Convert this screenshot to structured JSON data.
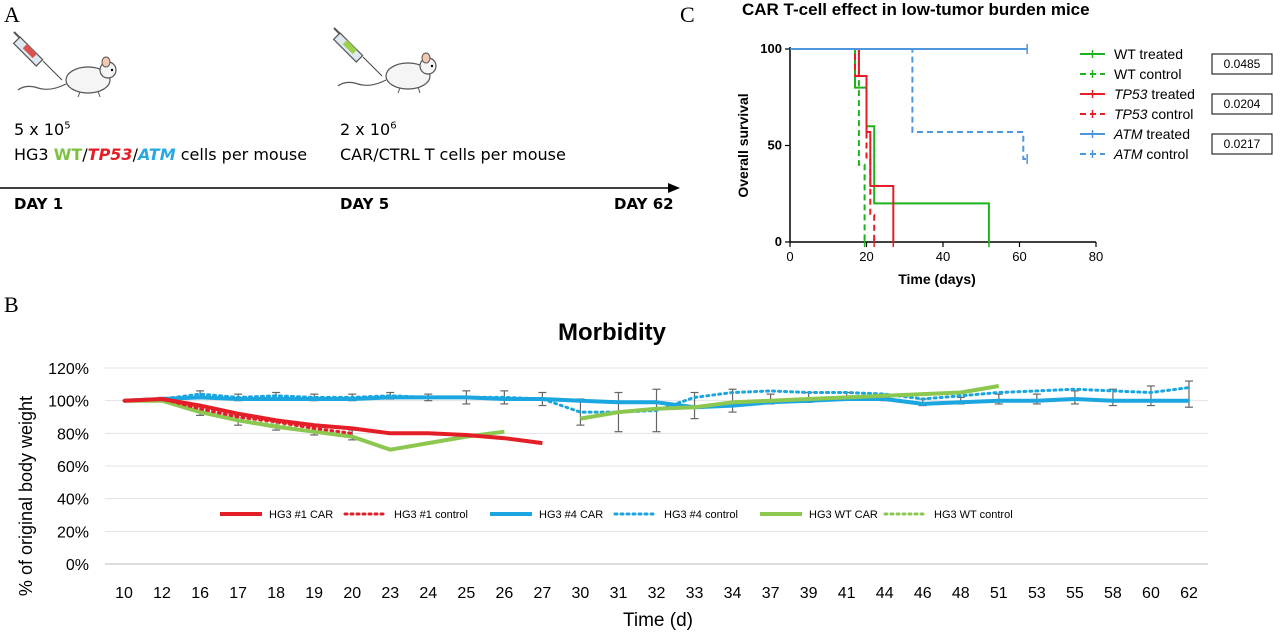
{
  "panel_a": {
    "letter": "A",
    "dose1": {
      "base": "5 x 10",
      "exp": "5",
      "prefix": "HG3 ",
      "wt": "WT",
      "sep1": "/",
      "tp53": "TP53",
      "sep2": "/",
      "atm": "ATM",
      "suffix": " cells per mouse"
    },
    "dose2": {
      "base": "2 x 10",
      "exp": "6",
      "line2": "CAR/CTRL T cells per mouse"
    },
    "days": [
      "DAY 1",
      "DAY 5",
      "DAY 62"
    ],
    "colors": {
      "wt": "#7dc242",
      "tp53": "#e41e26",
      "atm": "#29a8e0"
    }
  },
  "panel_b": {
    "letter": "B"
  },
  "panel_c": {
    "letter": "C"
  },
  "chart_data": [
    {
      "type": "line",
      "subtype": "survival-step",
      "title": "CAR T-cell effect in low-tumor burden mice",
      "xlabel": "Time (days)",
      "ylabel": "Overall survival",
      "xlim": [
        0,
        80
      ],
      "ylim": [
        0,
        100
      ],
      "xticks": [
        "0",
        "20",
        "40",
        "60",
        "80"
      ],
      "yticks": [
        "0",
        "50",
        "100"
      ],
      "legend_position": "right",
      "series": [
        {
          "name": "WT treated",
          "name_main": "WT",
          "name_rest": " treated",
          "italic": false,
          "color": "#1db31d",
          "dash": false,
          "steps": [
            [
              0,
              100
            ],
            [
              17,
              100
            ],
            [
              17,
              80
            ],
            [
              20,
              80
            ],
            [
              20,
              60
            ],
            [
              22,
              60
            ],
            [
              22,
              20
            ],
            [
              52,
              20
            ],
            [
              52,
              0
            ]
          ]
        },
        {
          "name": "WT control",
          "name_main": "WT",
          "name_rest": " control",
          "italic": false,
          "color": "#1db31d",
          "dash": true,
          "steps": [
            [
              0,
              100
            ],
            [
              18,
              100
            ],
            [
              18,
              40
            ],
            [
              19.5,
              40
            ],
            [
              19.5,
              0
            ]
          ]
        },
        {
          "name": "TP53 treated",
          "name_main": "TP53",
          "name_rest": " treated",
          "italic": true,
          "color": "#e41e26",
          "dash": false,
          "steps": [
            [
              0,
              100
            ],
            [
              18,
              100
            ],
            [
              18,
              86
            ],
            [
              20,
              86
            ],
            [
              20,
              57
            ],
            [
              21,
              57
            ],
            [
              21,
              29
            ],
            [
              23,
              29
            ],
            [
              23,
              29
            ],
            [
              25,
              29
            ],
            [
              25,
              29
            ],
            [
              27,
              29
            ],
            [
              27,
              0
            ]
          ]
        },
        {
          "name": "TP53 control",
          "name_main": "TP53",
          "name_rest": " control",
          "italic": true,
          "color": "#e41e26",
          "dash": true,
          "steps": [
            [
              0,
              100
            ],
            [
              17,
              100
            ],
            [
              17,
              86
            ],
            [
              20,
              86
            ],
            [
              20,
              43
            ],
            [
              21,
              43
            ],
            [
              21,
              14
            ],
            [
              22,
              14
            ],
            [
              22,
              0
            ]
          ]
        },
        {
          "name": "ATM treated",
          "name_main": "ATM",
          "name_rest": " treated",
          "italic": true,
          "color": "#4f97dd",
          "dash": false,
          "steps": [
            [
              0,
              100
            ],
            [
              62,
              100
            ]
          ]
        },
        {
          "name": "ATM control",
          "name_main": "ATM",
          "name_rest": " control",
          "italic": true,
          "color": "#4f97dd",
          "dash": true,
          "steps": [
            [
              0,
              100
            ],
            [
              32,
              100
            ],
            [
              32,
              57
            ],
            [
              61,
              57
            ],
            [
              61,
              43
            ],
            [
              62,
              43
            ]
          ]
        }
      ],
      "pvalues": [
        "0.0485",
        "0.0204",
        "0.0217"
      ]
    },
    {
      "type": "line",
      "title": "Morbidity",
      "xlabel": "Time (d)",
      "ylabel": "% of original body weight",
      "ylim": [
        0,
        120
      ],
      "yticks": [
        "0%",
        "20%",
        "40%",
        "60%",
        "80%",
        "100%",
        "120%"
      ],
      "categories": [
        "10",
        "12",
        "16",
        "17",
        "18",
        "19",
        "20",
        "23",
        "24",
        "25",
        "26",
        "27",
        "30",
        "31",
        "32",
        "33",
        "34",
        "37",
        "39",
        "41",
        "44",
        "46",
        "48",
        "51",
        "53",
        "55",
        "58",
        "60",
        "62"
      ],
      "legend_position": "inside-bottom",
      "series": [
        {
          "name": "HG3 #1 CAR",
          "color": "#e41e26",
          "style": "solid",
          "values": [
            100,
            101,
            97,
            92,
            88,
            85,
            83,
            80,
            80,
            79,
            77,
            74,
            null,
            null,
            null,
            null,
            null,
            null,
            null,
            null,
            null,
            null,
            null,
            null,
            null,
            null,
            null,
            null,
            null
          ]
        },
        {
          "name": "HG3 #1 control",
          "color": "#e41e26",
          "style": "dotted",
          "values": [
            100,
            101,
            95,
            90,
            87,
            83,
            80,
            null,
            null,
            null,
            null,
            null,
            null,
            null,
            null,
            null,
            null,
            null,
            null,
            null,
            null,
            null,
            null,
            null,
            null,
            null,
            null,
            null,
            null
          ]
        },
        {
          "name": "HG3 #4 CAR",
          "color": "#1ba6e0",
          "style": "solid",
          "values": [
            100,
            101,
            102,
            101,
            101,
            101,
            101,
            102,
            102,
            102,
            101,
            101,
            100,
            99,
            99,
            96,
            97,
            99,
            100,
            101,
            101,
            98,
            99,
            100,
            100,
            101,
            100,
            100,
            100
          ]
        },
        {
          "name": "HG3 #4 control",
          "color": "#1ba6e0",
          "style": "dotted",
          "values": [
            100,
            101,
            104,
            102,
            103,
            102,
            102,
            103,
            102,
            102,
            102,
            101,
            93,
            93,
            94,
            102,
            105,
            106,
            105,
            105,
            104,
            101,
            103,
            105,
            106,
            107,
            106,
            105,
            108
          ]
        },
        {
          "name": "HG3 WT CAR",
          "color": "#8cc850",
          "style": "solid",
          "values": [
            100,
            100,
            93,
            88,
            84,
            81,
            78,
            70,
            74,
            78,
            81,
            null,
            89,
            93,
            95,
            96,
            99,
            100,
            101,
            102,
            103,
            104,
            105,
            109,
            null,
            null,
            null,
            null,
            null
          ]
        },
        {
          "name": "HG3 WT control",
          "color": "#8cc850",
          "style": "dotted",
          "values": [
            100,
            100,
            94,
            88,
            85,
            81,
            79,
            null,
            null,
            null,
            null,
            null,
            null,
            null,
            null,
            null,
            null,
            null,
            null,
            null,
            null,
            null,
            null,
            null,
            null,
            null,
            null,
            null,
            null
          ]
        }
      ],
      "error_bars": [
        {
          "cat": "16",
          "value": 94,
          "err": 3
        },
        {
          "cat": "17",
          "value": 88,
          "err": 3
        },
        {
          "cat": "18",
          "value": 85,
          "err": 3
        },
        {
          "cat": "19",
          "value": 82,
          "err": 3
        },
        {
          "cat": "20",
          "value": 79,
          "err": 3
        },
        {
          "cat": "16",
          "value": 104,
          "err": 2
        },
        {
          "cat": "17",
          "value": 102,
          "err": 2
        },
        {
          "cat": "18",
          "value": 103,
          "err": 2
        },
        {
          "cat": "19",
          "value": 102,
          "err": 2
        },
        {
          "cat": "20",
          "value": 102,
          "err": 2
        },
        {
          "cat": "23",
          "value": 103,
          "err": 2
        },
        {
          "cat": "24",
          "value": 102,
          "err": 2
        },
        {
          "cat": "25",
          "value": 102,
          "err": 4
        },
        {
          "cat": "26",
          "value": 102,
          "err": 4
        },
        {
          "cat": "27",
          "value": 101,
          "err": 4
        },
        {
          "cat": "30",
          "value": 93,
          "err": 8
        },
        {
          "cat": "31",
          "value": 93,
          "err": 12
        },
        {
          "cat": "32",
          "value": 94,
          "err": 13
        },
        {
          "cat": "33",
          "value": 97,
          "err": 8
        },
        {
          "cat": "34",
          "value": 100,
          "err": 7
        },
        {
          "cat": "37",
          "value": 101,
          "err": 3
        },
        {
          "cat": "39",
          "value": 102,
          "err": 3
        },
        {
          "cat": "41",
          "value": 103,
          "err": 2
        },
        {
          "cat": "44",
          "value": 102,
          "err": 2
        },
        {
          "cat": "46",
          "value": 99,
          "err": 2
        },
        {
          "cat": "48",
          "value": 100,
          "err": 2
        },
        {
          "cat": "51",
          "value": 101,
          "err": 3
        },
        {
          "cat": "53",
          "value": 101,
          "err": 3
        },
        {
          "cat": "55",
          "value": 102,
          "err": 4
        },
        {
          "cat": "58",
          "value": 102,
          "err": 5
        },
        {
          "cat": "60",
          "value": 103,
          "err": 6
        },
        {
          "cat": "62",
          "value": 104,
          "err": 8
        },
        {
          "cat": "12",
          "value": 101,
          "err": 1
        }
      ]
    }
  ]
}
